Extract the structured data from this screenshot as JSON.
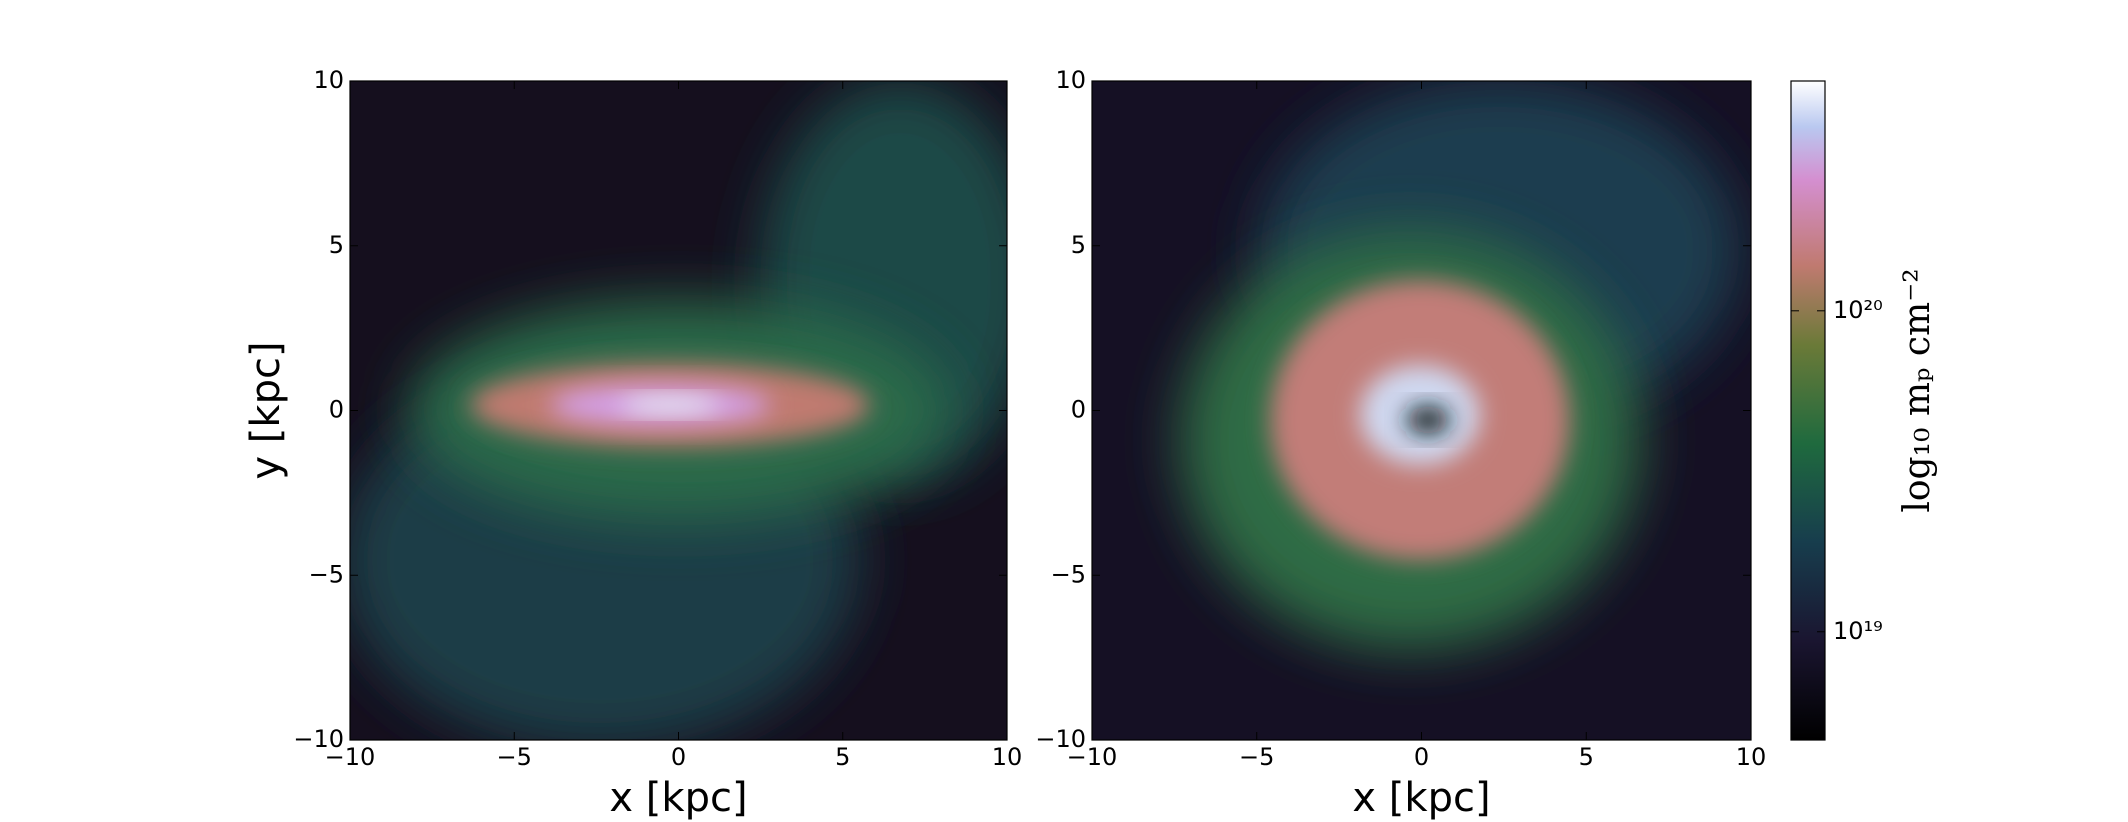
{
  "chart_data": [
    {
      "type": "image",
      "xlabel": "x [kpc]",
      "ylabel": "y [kpc]",
      "colormap": "cubehelix",
      "xlim": [
        -10,
        10
      ],
      "ylim": [
        -10,
        10
      ],
      "xticks": [
        {
          "value": -10,
          "label": "−10"
        },
        {
          "value": -5,
          "label": "−5"
        },
        0,
        5,
        10
      ],
      "yticks": [
        {
          "value": -10,
          "label": "−10"
        },
        {
          "value": -5,
          "label": "−5"
        },
        0,
        5,
        10
      ]
    },
    {
      "type": "image",
      "xlabel": "x [kpc]",
      "colormap": "cubehelix",
      "xlim": [
        -10,
        10
      ],
      "ylim": [
        -10,
        10
      ],
      "xticks": [
        {
          "value": -10,
          "label": "−10"
        },
        {
          "value": -5,
          "label": "−5"
        },
        0,
        5,
        10
      ],
      "yticks": [
        {
          "value": -10,
          "label": "−10"
        },
        {
          "value": -5,
          "label": "−5"
        },
        0,
        5,
        10
      ]
    },
    {
      "type": "colorbar",
      "label": "log₁₀ mₚ  cm⁻²",
      "scale": "log",
      "colormap": "cubehelix",
      "ylim": [
        4.6e+18,
        5.2e+20
      ],
      "yticks": [
        {
          "value": 1e+19,
          "label": "10¹⁹"
        },
        {
          "value": 1e+20,
          "label": "10²⁰"
        }
      ]
    }
  ]
}
